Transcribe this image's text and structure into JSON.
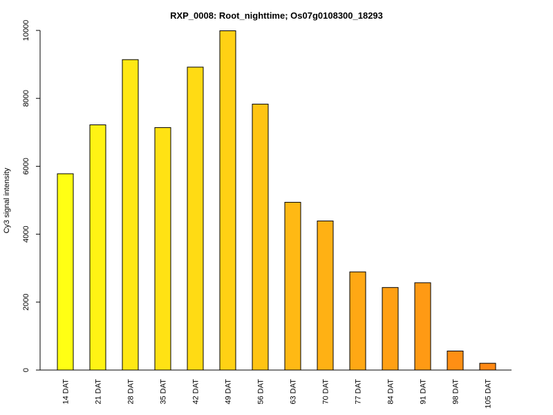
{
  "chart_data": {
    "type": "bar",
    "title": "RXP_0008: Root_nighttime; Os07g0108300_18293",
    "xlabel": "",
    "ylabel": "Cy3 signal intensity",
    "categories": [
      "14 DAT",
      "21 DAT",
      "28 DAT",
      "35 DAT",
      "42 DAT",
      "49 DAT",
      "56 DAT",
      "63 DAT",
      "70 DAT",
      "77 DAT",
      "84 DAT",
      "91 DAT",
      "98 DAT",
      "105 DAT"
    ],
    "values": [
      5780,
      7220,
      9140,
      7140,
      8920,
      9990,
      7830,
      4940,
      4390,
      2890,
      2430,
      2570,
      560,
      200
    ],
    "colors": [
      "#FFFF14",
      "#FFF314",
      "#FFE814",
      "#FFE214",
      "#FFDB14",
      "#FFD114",
      "#FFC414",
      "#FFB914",
      "#FFB114",
      "#FFA814",
      "#FFA014",
      "#FF9A14",
      "#FF8F14",
      "#FF8814"
    ],
    "yticks": [
      0,
      2000,
      4000,
      6000,
      8000,
      10000
    ],
    "ylim": [
      0,
      10000
    ],
    "grid": false,
    "legend": "none"
  }
}
